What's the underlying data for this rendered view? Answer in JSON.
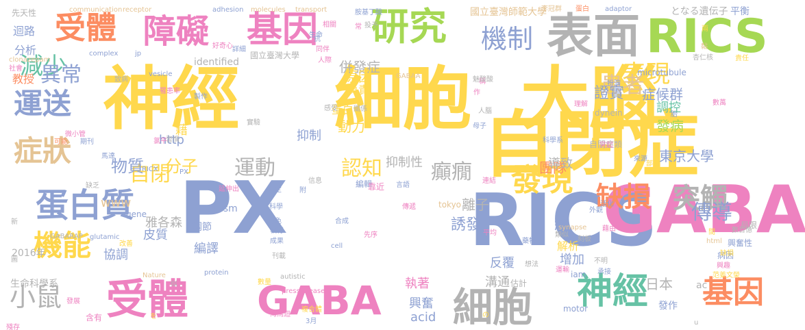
{
  "words": [
    {
      "text": "神經",
      "color": "#ffd84d"
    },
    {
      "text": "細胞",
      "color": "#ffd84d"
    },
    {
      "text": "大腦",
      "color": "#ffd84d"
    },
    {
      "text": "自閉症",
      "color": "#ffd84d"
    },
    {
      "text": "PX",
      "color": "#8ea1d2"
    },
    {
      "text": "RICS",
      "color": "#8ea1d2"
    },
    {
      "text": "GABAA",
      "color": "#ee82c0"
    },
    {
      "text": "受體",
      "color": "#ee82c0"
    },
    {
      "text": "GABA",
      "color": "#ee82c0"
    },
    {
      "text": "細胞",
      "color": "#b3b3b3"
    },
    {
      "text": "表面",
      "color": "#b3b3b3"
    },
    {
      "text": "RICS",
      "color": "#a6d854"
    },
    {
      "text": "基因",
      "color": "#ee82c0"
    },
    {
      "text": "研究",
      "color": "#a6d854"
    },
    {
      "text": "障礙",
      "color": "#ee82c0"
    },
    {
      "text": "受體",
      "color": "#fc8d62"
    },
    {
      "text": "蛋白質",
      "color": "#8ea1d2"
    },
    {
      "text": "症狀",
      "color": "#e5c494"
    },
    {
      "text": "運送",
      "color": "#8ea1d2"
    },
    {
      "text": "機能",
      "color": "#ffd84d"
    },
    {
      "text": "發現",
      "color": "#ffd84d"
    },
    {
      "text": "神經",
      "color": "#66c2a5"
    },
    {
      "text": "基因",
      "color": "#fc8d62"
    },
    {
      "text": "缺損",
      "color": "#fc8d62"
    },
    {
      "text": "突觸",
      "color": "#b3b3b3"
    },
    {
      "text": "小鼠",
      "color": "#b3b3b3"
    },
    {
      "text": "機制",
      "color": "#8ea1d2"
    },
    {
      "text": "表現",
      "color": "#ffd84d"
    },
    {
      "text": "患者",
      "color": "#e5c494"
    },
    {
      "text": "減少",
      "color": "#66c2a5"
    },
    {
      "text": "異常",
      "color": "#8ea1d2"
    },
    {
      "text": "自閉",
      "color": "#ffd84d"
    },
    {
      "text": "運動",
      "color": "#b3b3b3"
    },
    {
      "text": "認知",
      "color": "#ffd84d"
    },
    {
      "text": "癲癇",
      "color": "#b3b3b3"
    },
    {
      "text": "傳導",
      "color": "#8ea1d2"
    },
    {
      "text": "物質",
      "color": "#8ea1d2"
    },
    {
      "text": "分子",
      "color": "#ffd84d"
    },
    {
      "text": "離子",
      "color": "#b3b3b3"
    },
    {
      "text": "誘發",
      "color": "#8ea1d2"
    },
    {
      "text": "約",
      "color": "#8ea1d2"
    },
    {
      "text": "證實",
      "color": "#8ea1d2"
    },
    {
      "text": "症候群",
      "color": "#8ea1d2"
    },
    {
      "text": "發病",
      "color": "#a6d854"
    },
    {
      "text": "東京大學",
      "color": "#8ea1d2"
    },
    {
      "text": "團隊",
      "color": "#fc8d62"
    },
    {
      "text": "導致",
      "color": "#b3b3b3"
    },
    {
      "text": "調控",
      "color": "#66c2a5"
    },
    {
      "text": "併發症",
      "color": "#b3b3b3"
    },
    {
      "text": "原因",
      "color": "#ffd84d"
    },
    {
      "text": "負責",
      "color": "#ffd84d"
    },
    {
      "text": "蛋白",
      "color": "#ffd84d"
    },
    {
      "text": "動力",
      "color": "#ffd84d"
    },
    {
      "text": "抑制",
      "color": "#8ea1d2"
    },
    {
      "text": "抑制性",
      "color": "#b3b3b3"
    },
    {
      "text": "日本",
      "color": "#b3b3b3"
    },
    {
      "text": "發作",
      "color": "#8ea1d2"
    },
    {
      "text": "增加",
      "color": "#8ea1d2"
    },
    {
      "text": "反覆",
      "color": "#8ea1d2"
    },
    {
      "text": "溝通",
      "color": "#b3b3b3"
    },
    {
      "text": "執著",
      "color": "#ee82c0"
    },
    {
      "text": "興奮",
      "color": "#8ea1d2"
    },
    {
      "text": "acid",
      "color": "#8ea1d2"
    },
    {
      "text": "解析",
      "color": "#ffd84d"
    },
    {
      "text": "編譯",
      "color": "#8ea1d2"
    },
    {
      "text": "協調",
      "color": "#8ea1d2"
    },
    {
      "text": "皮質",
      "color": "#8ea1d2"
    },
    {
      "text": "雅各森",
      "color": "#b3b3b3"
    },
    {
      "text": "www",
      "color": "#e5c494"
    },
    {
      "text": "調節",
      "color": "#8ea1d2"
    },
    {
      "text": "藉",
      "color": "#ffd84d"
    },
    {
      "text": "http",
      "color": "#8ea1d2"
    },
    {
      "text": "identified",
      "color": "#b3b3b3"
    },
    {
      "text": "國立臺灣大學",
      "color": "#b3b3b3"
    },
    {
      "text": "國立臺灣師範大學",
      "color": "#e5c494"
    },
    {
      "text": "生命科學系",
      "color": "#b3b3b3"
    },
    {
      "text": "となる遺伝子",
      "color": "#b3b3b3"
    },
    {
      "text": "平衡",
      "color": "#8ea1d2"
    },
    {
      "text": "迴路",
      "color": "#8ea1d2"
    },
    {
      "text": "分析",
      "color": "#8ea1d2"
    },
    {
      "text": "教授",
      "color": "#fc8d62"
    },
    {
      "text": "2016年",
      "color": "#b3b3b3"
    },
    {
      "text": "GABARAP",
      "color": "#b3b3b3"
    },
    {
      "text": "glutamic",
      "color": "#8ea1d2"
    },
    {
      "text": "gene",
      "color": "#8ea1d2"
    },
    {
      "text": "tokyo",
      "color": "#e5c494"
    },
    {
      "text": "autism",
      "color": "#8ea1d2"
    },
    {
      "text": "dynein",
      "color": "#b3b3b3"
    },
    {
      "text": "microtubule",
      "color": "#8ea1d2"
    },
    {
      "text": "synapse",
      "color": "#e5c494"
    },
    {
      "text": "iam",
      "color": "#8ea1d2"
    },
    {
      "text": "ac",
      "color": "#b3b3b3"
    },
    {
      "text": "motor",
      "color": "#8ea1d2"
    },
    {
      "text": "html",
      "color": "#e5c494"
    },
    {
      "text": "cell",
      "color": "#8ea1d2"
    },
    {
      "text": "protein",
      "color": "#8ea1d2"
    },
    {
      "text": "autistic",
      "color": "#b3b3b3"
    },
    {
      "text": "Nature",
      "color": "#e5c494"
    },
    {
      "text": "pressrelease",
      "color": "#ee82c0"
    },
    {
      "text": "GABAA",
      "color": "#e5c494"
    },
    {
      "text": "communication",
      "color": "#e5c494"
    },
    {
      "text": "receptor",
      "color": "#e5c494"
    },
    {
      "text": "adhesion",
      "color": "#8ea1d2"
    },
    {
      "text": "molecules",
      "color": "#e5c494"
    },
    {
      "text": "transport",
      "color": "#e5c494"
    },
    {
      "text": "complex",
      "color": "#8ea1d2"
    },
    {
      "text": "jp",
      "color": "#8ea1d2"
    },
    {
      "text": "vesicle",
      "color": "#8ea1d2"
    },
    {
      "text": "clonazepam",
      "color": "#e5c494"
    },
    {
      "text": "adaptor",
      "color": "#8ea1d2"
    },
    {
      "text": "RICX",
      "color": "#8ea1d2"
    },
    {
      "text": "PX",
      "color": "#8ea1d2"
    },
    {
      "text": "胺基丁酸",
      "color": "#8ea1d2"
    },
    {
      "text": "先天性",
      "color": "#b3b3b3"
    },
    {
      "text": "蛋白",
      "color": "#fc8d62"
    },
    {
      "text": "李冠群",
      "color": "#e5c494"
    },
    {
      "text": "自閉症類",
      "color": "#b3b3b3"
    },
    {
      "text": "科學系",
      "color": "#8ea1d2"
    },
    {
      "text": "來源",
      "color": "#8ea1d2"
    },
    {
      "text": "病因",
      "color": "#8ea1d2"
    },
    {
      "text": "興奮性",
      "color": "#8ea1d2"
    },
    {
      "text": "局限",
      "color": "#b3b3b3"
    },
    {
      "text": "數百億",
      "color": "#b3b3b3"
    },
    {
      "text": "數萬",
      "color": "#ee82c0"
    },
    {
      "text": "興趣",
      "color": "#ee82c0"
    },
    {
      "text": "范姜文榮",
      "color": "#ffd84d"
    },
    {
      "text": "缺損",
      "color": "#ffd84d"
    },
    {
      "text": "估計",
      "color": "#b3b3b3"
    },
    {
      "text": "刊載",
      "color": "#b3b3b3"
    },
    {
      "text": "數量",
      "color": "#ffd84d"
    },
    {
      "text": "複合體",
      "color": "#ffd84d"
    },
    {
      "text": "3月",
      "color": "#8ea1d2"
    },
    {
      "text": "海馬迴",
      "color": "#ee82c0"
    },
    {
      "text": "傳遞",
      "color": "#ee82c0"
    },
    {
      "text": "先序",
      "color": "#ee82c0"
    },
    {
      "text": "合成",
      "color": "#8ea1d2"
    },
    {
      "text": "成果",
      "color": "#8ea1d2"
    },
    {
      "text": "執行",
      "color": "#8ea1d2"
    },
    {
      "text": "角色",
      "color": "#8ea1d2"
    },
    {
      "text": "科學",
      "color": "#8ea1d2"
    },
    {
      "text": "特定",
      "color": "#8ea1d2"
    },
    {
      "text": "延伸出",
      "color": "#ee82c0"
    },
    {
      "text": "信息",
      "color": "#b3b3b3"
    },
    {
      "text": "附",
      "color": "#8ea1d2"
    },
    {
      "text": "編輯",
      "color": "#8ea1d2"
    },
    {
      "text": "靠近",
      "color": "#ee82c0"
    },
    {
      "text": "言語",
      "color": "#8ea1d2"
    },
    {
      "text": "連結",
      "color": "#ee82c0"
    },
    {
      "text": "類似",
      "color": "#b3b3b3"
    },
    {
      "text": "刻板",
      "color": "#b3b3b3"
    },
    {
      "text": "平均",
      "color": "#ee82c0"
    },
    {
      "text": "藥物",
      "color": "#8ea1d2"
    },
    {
      "text": "運輸",
      "color": "#ee82c0"
    },
    {
      "text": "承接",
      "color": "#8ea1d2"
    },
    {
      "text": "外觀",
      "color": "#8ea1d2"
    },
    {
      "text": "活化",
      "color": "#8ea1d2"
    },
    {
      "text": "部位",
      "color": "#ffd84d"
    },
    {
      "text": "突起",
      "color": "#ee82c0"
    },
    {
      "text": "藉由",
      "color": "#ee82c0"
    },
    {
      "text": "想法",
      "color": "#b3b3b3"
    },
    {
      "text": "不明",
      "color": "#b3b3b3"
    },
    {
      "text": "人腦",
      "color": "#b3b3b3"
    },
    {
      "text": "母子",
      "color": "#8ea1d2"
    },
    {
      "text": "理解",
      "color": "#ee82c0"
    },
    {
      "text": "扮演",
      "color": "#8ea1d2"
    },
    {
      "text": "責任",
      "color": "#ffd84d"
    },
    {
      "text": "杏仁核",
      "color": "#b3b3b3"
    },
    {
      "text": "黏",
      "color": "#e5c494"
    },
    {
      "text": "兩",
      "color": "#ffd84d"
    },
    {
      "text": "稱",
      "color": "#ee82c0"
    },
    {
      "text": "常",
      "color": "#ee82c0"
    },
    {
      "text": "投予",
      "color": "#b3b3b3"
    },
    {
      "text": "生命",
      "color": "#8ea1d2"
    },
    {
      "text": "相關",
      "color": "#ee82c0"
    },
    {
      "text": "同伴",
      "color": "#ee82c0"
    },
    {
      "text": "好奇心",
      "color": "#ee82c0"
    },
    {
      "text": "詳細",
      "color": "#8ea1d2"
    },
    {
      "text": "抗",
      "color": "#8ea1d2"
    },
    {
      "text": "人際",
      "color": "#ee82c0"
    },
    {
      "text": "致病",
      "color": "#b3b3b3"
    },
    {
      "text": "極",
      "color": "#ffd84d"
    },
    {
      "text": "社會",
      "color": "#ee82c0"
    },
    {
      "text": "罹患率",
      "color": "#ee82c0"
    },
    {
      "text": "製作",
      "color": "#8ea1d2"
    },
    {
      "text": "感受",
      "color": "#b3b3b3"
    },
    {
      "text": "關係",
      "color": "#b3b3b3"
    },
    {
      "text": "實驗",
      "color": "#b3b3b3"
    },
    {
      "text": "氯平",
      "color": "#ee82c0"
    },
    {
      "text": "習慣",
      "color": "#b3b3b3"
    },
    {
      "text": "微小管",
      "color": "#ee82c0"
    },
    {
      "text": "可能",
      "color": "#fc8d62"
    },
    {
      "text": "期刊",
      "color": "#8ea1d2"
    },
    {
      "text": "馬達",
      "color": "#8ea1d2"
    },
    {
      "text": "缺乏",
      "color": "#b3b3b3"
    },
    {
      "text": "新",
      "color": "#b3b3b3"
    },
    {
      "text": "圖",
      "color": "#b3b3b3"
    },
    {
      "text": "改善",
      "color": "#ffd84d"
    },
    {
      "text": "似",
      "color": "#b3b3b3"
    },
    {
      "text": "發展",
      "color": "#ee82c0"
    },
    {
      "text": "含有",
      "color": "#ee82c0"
    },
    {
      "text": "殘存",
      "color": "#ee82c0"
    },
    {
      "text": "を",
      "color": "#ffd84d"
    },
    {
      "text": "の",
      "color": "#ffd84d"
    },
    {
      "text": "作",
      "color": "#ee82c0"
    },
    {
      "text": "u",
      "color": "#b3b3b3"
    },
    {
      "text": "胎",
      "color": "#8ea1d2"
    },
    {
      "text": "間",
      "color": "#ffd84d"
    },
    {
      "text": "魅酸酸",
      "color": "#b3b3b3"
    }
  ]
}
